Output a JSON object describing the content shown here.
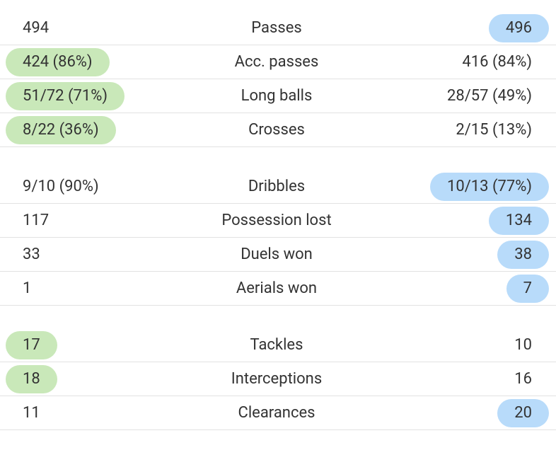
{
  "groups": [
    {
      "rows": [
        {
          "label": "Passes",
          "home": "494",
          "away": "496",
          "highlight": "away"
        },
        {
          "label": "Acc. passes",
          "home": "424 (86%)",
          "away": "416 (84%)",
          "highlight": "home"
        },
        {
          "label": "Long balls",
          "home": "51/72 (71%)",
          "away": "28/57 (49%)",
          "highlight": "home"
        },
        {
          "label": "Crosses",
          "home": "8/22 (36%)",
          "away": "2/15 (13%)",
          "highlight": "home"
        }
      ]
    },
    {
      "rows": [
        {
          "label": "Dribbles",
          "home": "9/10 (90%)",
          "away": "10/13 (77%)",
          "highlight": "away"
        },
        {
          "label": "Possession lost",
          "home": "117",
          "away": "134",
          "highlight": "away"
        },
        {
          "label": "Duels won",
          "home": "33",
          "away": "38",
          "highlight": "away"
        },
        {
          "label": "Aerials won",
          "home": "1",
          "away": "7",
          "highlight": "away"
        }
      ]
    },
    {
      "rows": [
        {
          "label": "Tackles",
          "home": "17",
          "away": "10",
          "highlight": "home"
        },
        {
          "label": "Interceptions",
          "home": "18",
          "away": "16",
          "highlight": "home"
        },
        {
          "label": "Clearances",
          "home": "11",
          "away": "20",
          "highlight": "away"
        }
      ]
    }
  ],
  "colors": {
    "home": "#c9e8b9",
    "away": "#b8dbfa"
  }
}
